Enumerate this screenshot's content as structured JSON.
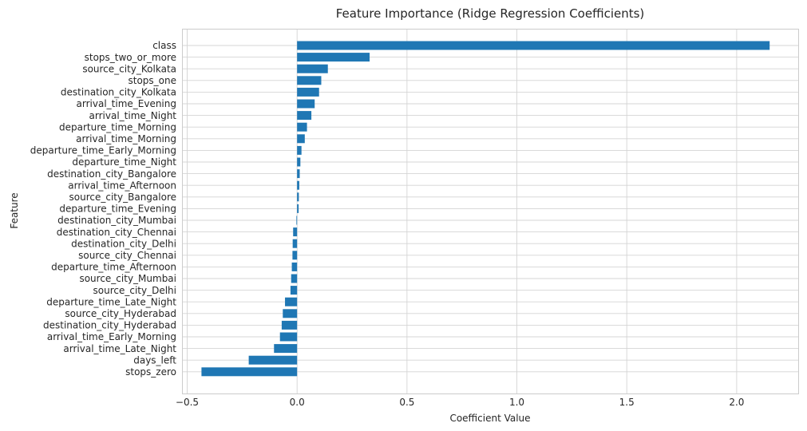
{
  "chart_data": {
    "type": "bar",
    "orientation": "horizontal",
    "title": "Feature Importance (Ridge Regression Coefficients)",
    "xlabel": "Coefficient Value",
    "ylabel": "Feature",
    "xlim": [
      -0.52,
      2.28
    ],
    "xticks": [
      -0.5,
      0.0,
      0.5,
      1.0,
      1.5,
      2.0
    ],
    "xtick_labels": [
      "−0.5",
      "0.0",
      "0.5",
      "1.0",
      "1.5",
      "2.0"
    ],
    "grid": true,
    "bar_color": "#1f77b4",
    "categories": [
      "class",
      "stops_two_or_more",
      "source_city_Kolkata",
      "stops_one",
      "destination_city_Kolkata",
      "arrival_time_Evening",
      "arrival_time_Night",
      "departure_time_Morning",
      "arrival_time_Morning",
      "departure_time_Early_Morning",
      "departure_time_Night",
      "destination_city_Bangalore",
      "arrival_time_Afternoon",
      "source_city_Bangalore",
      "departure_time_Evening",
      "destination_city_Mumbai",
      "destination_city_Chennai",
      "destination_city_Delhi",
      "source_city_Chennai",
      "departure_time_Afternoon",
      "source_city_Mumbai",
      "source_city_Delhi",
      "departure_time_Late_Night",
      "source_city_Hyderabad",
      "destination_city_Hyderabad",
      "arrival_time_Early_Morning",
      "arrival_time_Late_Night",
      "days_left",
      "stops_zero"
    ],
    "values": [
      2.15,
      0.33,
      0.14,
      0.11,
      0.1,
      0.08,
      0.065,
      0.045,
      0.035,
      0.02,
      0.015,
      0.012,
      0.01,
      0.008,
      0.007,
      -0.003,
      -0.018,
      -0.02,
      -0.021,
      -0.024,
      -0.027,
      -0.03,
      -0.055,
      -0.065,
      -0.07,
      -0.078,
      -0.105,
      -0.22,
      -0.435
    ]
  }
}
